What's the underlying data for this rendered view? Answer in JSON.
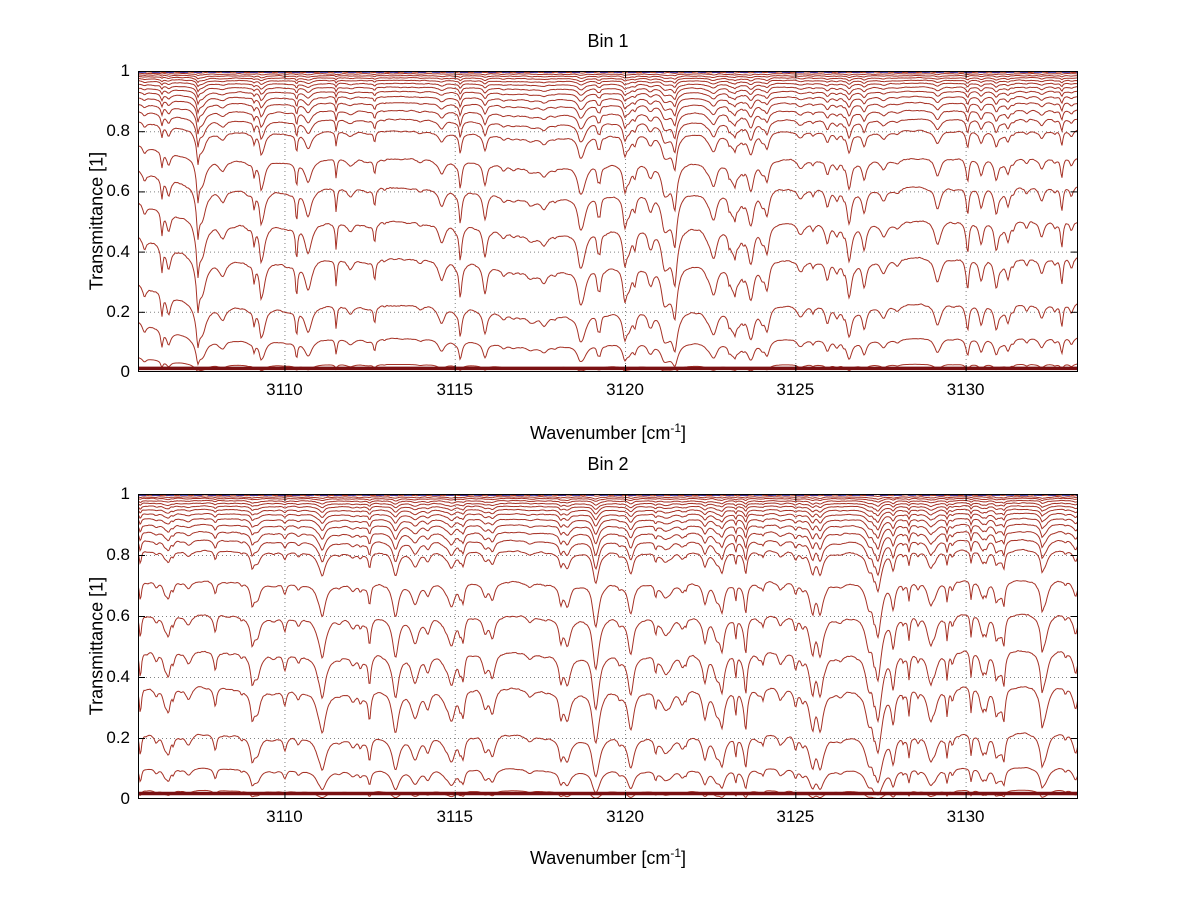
{
  "page": {
    "background": "#ffffff"
  },
  "chart_data": [
    {
      "type": "line",
      "title": "Bin 1",
      "xlabel_pre": "Wavenumber [cm",
      "xlabel_sup": "-1",
      "xlabel_post": "]",
      "ylabel": "Transmittance [1]",
      "xlim": [
        3105.7,
        3133.3
      ],
      "ylim": [
        0,
        1
      ],
      "xticks": [
        3110,
        3115,
        3120,
        3125,
        3130
      ],
      "yticks": [
        0,
        0.2,
        0.4,
        0.6,
        0.8,
        1
      ],
      "grid": "dotted",
      "legend": "none",
      "series_color": "#a63226",
      "reference_line": {
        "y": 0.997,
        "style": "dashed",
        "color": "#2028b0"
      },
      "bottom_line": {
        "y": 0.012,
        "color": "#7a1113",
        "width": 3.5
      },
      "transmittance_levels": [
        0.996,
        0.991,
        0.985,
        0.978,
        0.97,
        0.96,
        0.948,
        0.934,
        0.917,
        0.897,
        0.872,
        0.843,
        0.805,
        0.715,
        0.62,
        0.508,
        0.387,
        0.232,
        0.118,
        0.028
      ],
      "left_edge_clearing": 0.18,
      "noise_seed": 11
    },
    {
      "type": "line",
      "title": "Bin 2",
      "xlabel_pre": "Wavenumber [cm",
      "xlabel_sup": "-1",
      "xlabel_post": "]",
      "ylabel": "Transmittance [1]",
      "xlim": [
        3105.7,
        3133.3
      ],
      "ylim": [
        0,
        1
      ],
      "xticks": [
        3110,
        3115,
        3120,
        3125,
        3130
      ],
      "yticks": [
        0,
        0.2,
        0.4,
        0.6,
        0.8,
        1
      ],
      "grid": "dotted",
      "legend": "none",
      "series_color": "#a63226",
      "reference_line": {
        "y": 0.997,
        "style": "dashed",
        "color": "#2028b0"
      },
      "bottom_line": {
        "y": 0.018,
        "color": "#7a1113",
        "width": 3.5
      },
      "transmittance_levels": [
        0.996,
        0.991,
        0.986,
        0.979,
        0.971,
        0.962,
        0.951,
        0.938,
        0.922,
        0.903,
        0.88,
        0.853,
        0.82,
        0.722,
        0.614,
        0.496,
        0.379,
        0.224,
        0.11,
        0.032
      ],
      "left_edge_clearing": 0.06,
      "noise_seed": 22
    }
  ]
}
